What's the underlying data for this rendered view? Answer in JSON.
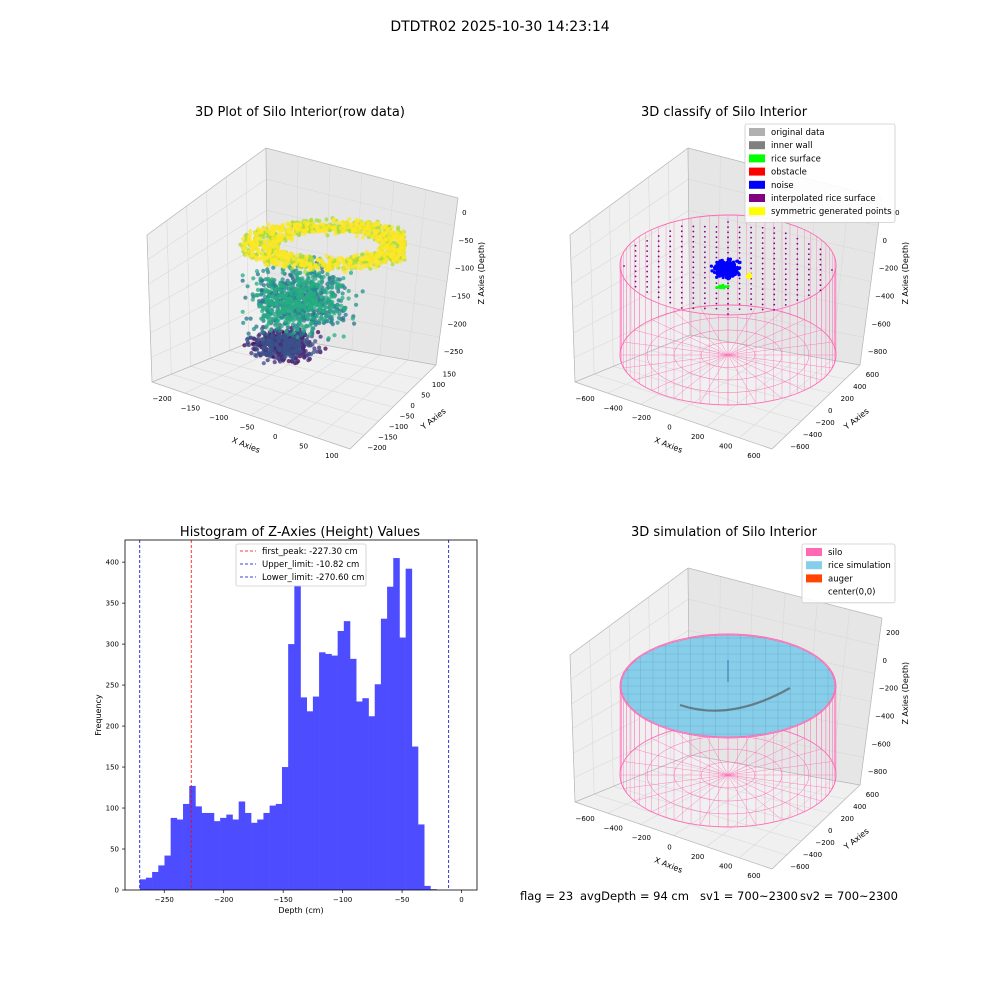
{
  "figure_title": "DTDTR02 2025-10-30 14:23:14",
  "footer": {
    "flag": "flag = 23",
    "avg_depth": "avgDepth = 94 cm",
    "sv1": "sv1 = 700~2300",
    "sv2": "sv2 = 700~2300"
  },
  "colors": {
    "histogram_bar": "#4d4dff",
    "first_peak_line": "#ff0000",
    "limit_lines": "#0000cc",
    "silo": "#ff69b4",
    "rice_simulation": "#87ceeb",
    "auger": "#ff4500",
    "noise": "#0000ff",
    "rice_surface": "#00ff00",
    "symmetric_points": "#ffff00",
    "interpolated_surface": "#800080"
  },
  "chart_data": [
    {
      "type": "scatter",
      "subtype": "3d",
      "title": "3D Plot of Silo Interior(row data)",
      "xlabel": "X Axies",
      "ylabel": "Y Axies",
      "zlabel": "Z Axies (Depth)",
      "x_ticks": [
        "−200",
        "−150",
        "−100",
        "−50",
        "0",
        "50",
        "100"
      ],
      "y_ticks": [
        "−200",
        "−150",
        "−100",
        "−50",
        "0",
        "50",
        "100",
        "150"
      ],
      "z_ticks": [
        "0",
        "−50",
        "−100",
        "−150",
        "−200",
        "−250"
      ],
      "xlim": [
        -225,
        125
      ],
      "ylim": [
        -215,
        175
      ],
      "zlim": [
        -285,
        5
      ],
      "colormap": "viridis"
    },
    {
      "type": "scatter",
      "subtype": "3d",
      "title": "3D classify of Silo Interior",
      "xlabel": "X Axies",
      "ylabel": "Y Axies",
      "zlabel": "Z Axies (Depth)",
      "x_ticks": [
        "−600",
        "−400",
        "−200",
        "0",
        "200",
        "400",
        "600"
      ],
      "y_ticks": [
        "−600",
        "−400",
        "−200",
        "0",
        "200",
        "400",
        "600"
      ],
      "z_ticks": [
        "200",
        "0",
        "−200",
        "−400",
        "−600",
        "−800"
      ],
      "legend": [
        {
          "label": "original data",
          "color": "#b0b0b0"
        },
        {
          "label": "inner wall",
          "color": "#808080"
        },
        {
          "label": "rice surface",
          "color": "#00ff00"
        },
        {
          "label": "obstacle",
          "color": "#ff0000"
        },
        {
          "label": "noise",
          "color": "#0000ff"
        },
        {
          "label": "interpolated rice surface",
          "color": "#800080"
        },
        {
          "label": "symmetric generated points",
          "color": "#ffff00"
        }
      ],
      "legend_position": "top-right"
    },
    {
      "type": "bar",
      "subtype": "histogram",
      "title": "Histogram of Z-Axies (Height) Values",
      "xlabel": "Depth (cm)",
      "ylabel": "Frequency",
      "xlim": [
        -283,
        13
      ],
      "ylim": [
        0,
        427
      ],
      "x_ticks": [
        -250,
        -200,
        -150,
        -100,
        -50,
        0
      ],
      "x_tick_labels": [
        "−250",
        "−200",
        "−150",
        "−100",
        "−50",
        "0"
      ],
      "y_ticks": [
        0,
        50,
        100,
        150,
        200,
        250,
        300,
        350,
        400
      ],
      "bin_start": -270.6,
      "bin_width": 5.2,
      "values": [
        13,
        15,
        22,
        30,
        42,
        88,
        86,
        105,
        127,
        102,
        94,
        94,
        84,
        88,
        92,
        86,
        108,
        94,
        82,
        86,
        94,
        103,
        105,
        150,
        300,
        372,
        235,
        218,
        236,
        290,
        288,
        286,
        316,
        328,
        282,
        230,
        234,
        212,
        251,
        331,
        370,
        405,
        308,
        392,
        175,
        80,
        5,
        1
      ],
      "vlines": [
        {
          "label": "first_peak: -227.30 cm",
          "x": -227.3,
          "color": "#ff0000"
        },
        {
          "label": "Upper_limit: -10.82 cm",
          "x": -10.82,
          "color": "#0000cc"
        },
        {
          "label": "Lower_limit: -270.60 cm",
          "x": -270.6,
          "color": "#0000cc"
        }
      ],
      "legend_position": "top-center"
    },
    {
      "type": "area",
      "subtype": "3d-surface",
      "title": "3D simulation of Silo Interior",
      "xlabel": "X Axies",
      "ylabel": "Y Axies",
      "zlabel": "Z Axies (Depth)",
      "x_ticks": [
        "−600",
        "−400",
        "−200",
        "0",
        "200",
        "400",
        "600"
      ],
      "y_ticks": [
        "−600",
        "−400",
        "−200",
        "0",
        "200",
        "400",
        "600"
      ],
      "z_ticks": [
        "200",
        "0",
        "−200",
        "−400",
        "−600",
        "−800"
      ],
      "legend": [
        {
          "label": "silo",
          "color": "#ff69b4"
        },
        {
          "label": "rice simulation",
          "color": "#87ceeb"
        },
        {
          "label": "auger",
          "color": "#ff4500"
        },
        {
          "label": "center(0,0)",
          "color": "#ffffff"
        }
      ],
      "legend_position": "top-right"
    }
  ]
}
